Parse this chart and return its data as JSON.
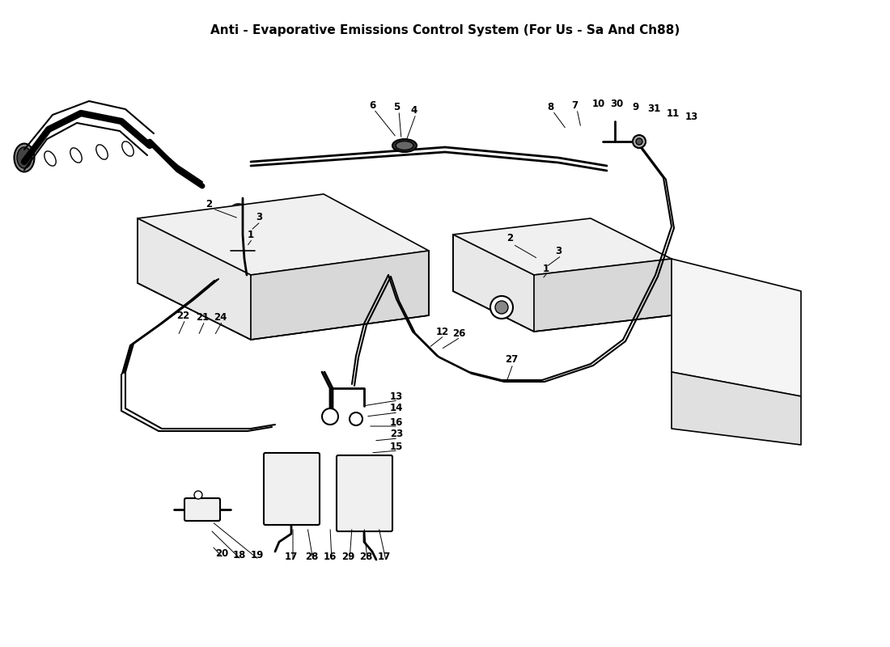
{
  "title": "Anti - Evaporative Emissions Control System (For Us - Sa And Ch88)",
  "bg_color": "#ffffff",
  "line_color": "#000000",
  "title_fontsize": 11,
  "fig_width": 11.0,
  "fig_height": 8.0,
  "dpi": 100
}
